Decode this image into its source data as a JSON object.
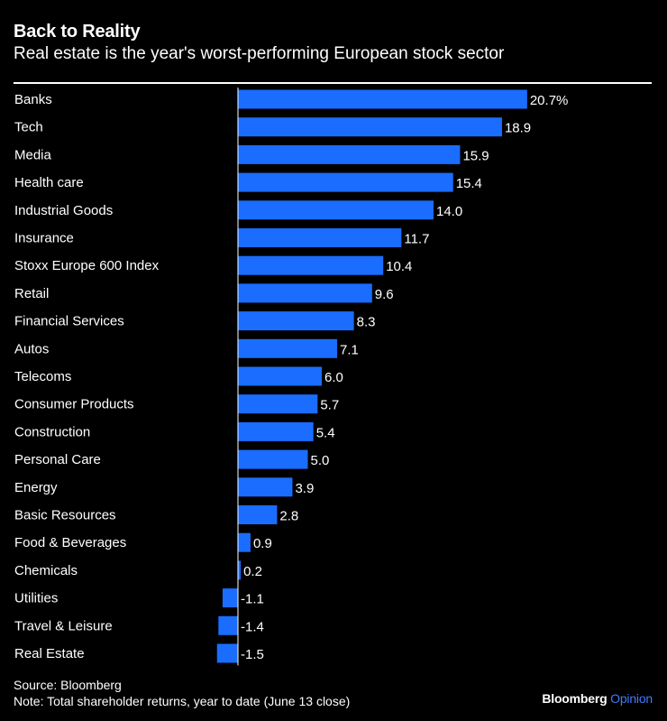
{
  "header": {
    "title": "Back to Reality",
    "subtitle": "Real estate is the year's worst-performing European stock sector"
  },
  "footer": {
    "source": "Source: Bloomberg",
    "note": "Note: Total shareholder returns, year to date (June 13 close)",
    "brand_name": "Bloomberg",
    "brand_suffix": "Opinion"
  },
  "colors": {
    "background": "#000000",
    "bar": "#1a6dff",
    "text": "#ffffff",
    "brand_accent": "#3d7bff"
  },
  "chart_data": {
    "type": "bar",
    "orientation": "horizontal",
    "title": "Back to Reality",
    "subtitle": "Real estate is the year's worst-performing European stock sector",
    "xlabel": "",
    "ylabel": "",
    "unit": "%",
    "xlim": [
      -1.5,
      20.7
    ],
    "grid": false,
    "categories": [
      "Banks",
      "Tech",
      "Media",
      "Health care",
      "Industrial Goods",
      "Insurance",
      "Stoxx Europe 600 Index",
      "Retail",
      "Financial Services",
      "Autos",
      "Telecoms",
      "Consumer Products",
      "Construction",
      "Personal Care",
      "Energy",
      "Basic Resources",
      "Food & Beverages",
      "Chemicals",
      "Utilities",
      "Travel & Leisure",
      "Real Estate"
    ],
    "values": [
      20.7,
      18.9,
      15.9,
      15.4,
      14.0,
      11.7,
      10.4,
      9.6,
      8.3,
      7.1,
      6.0,
      5.7,
      5.4,
      5.0,
      3.9,
      2.8,
      0.9,
      0.2,
      -1.1,
      -1.4,
      -1.5
    ],
    "value_labels": [
      "20.7%",
      "18.9",
      "15.9",
      "15.4",
      "14.0",
      "11.7",
      "10.4",
      "9.6",
      "8.3",
      "7.1",
      "6.0",
      "5.7",
      "5.4",
      "5.0",
      "3.9",
      "2.8",
      "0.9",
      "0.2",
      "-1.1",
      "-1.4",
      "-1.5"
    ]
  }
}
